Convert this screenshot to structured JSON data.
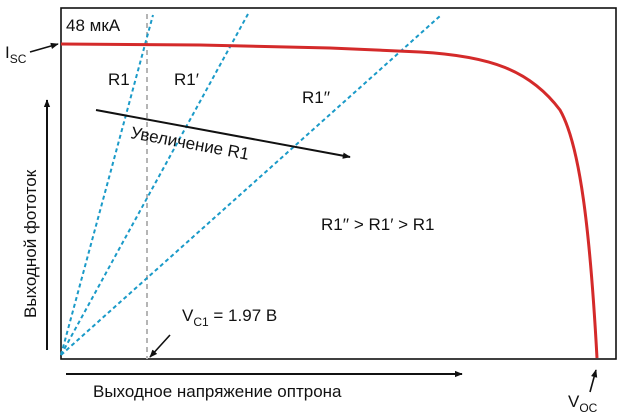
{
  "labels": {
    "current_value": "48 мкА",
    "isc_main": "I",
    "isc_sub": "SC",
    "r1": "R1",
    "r1_prime": "R1′",
    "r1_double": "R1′′",
    "increase": "Увеличение R1",
    "relation": "R1′′ > R1′ > R1",
    "vc1_main": "V",
    "vc1_sub": "C1",
    "vc1_value": " = 1.97 В",
    "voc_main": "V",
    "voc_sub": "OC",
    "y_axis": "Выходной фототок",
    "x_axis": "Выходное напряжение оптрона"
  },
  "colors": {
    "curve": "#d42a2a",
    "load_lines": "#1a9ac8",
    "marker": "#b5b5b5",
    "ink": "#111111"
  }
}
